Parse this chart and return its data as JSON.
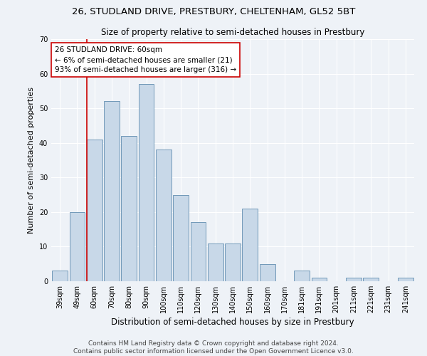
{
  "title": "26, STUDLAND DRIVE, PRESTBURY, CHELTENHAM, GL52 5BT",
  "subtitle": "Size of property relative to semi-detached houses in Prestbury",
  "xlabel": "Distribution of semi-detached houses by size in Prestbury",
  "ylabel": "Number of semi-detached properties",
  "categories": [
    "39sqm",
    "49sqm",
    "60sqm",
    "70sqm",
    "80sqm",
    "90sqm",
    "100sqm",
    "110sqm",
    "120sqm",
    "130sqm",
    "140sqm",
    "150sqm",
    "160sqm",
    "170sqm",
    "181sqm",
    "191sqm",
    "201sqm",
    "211sqm",
    "221sqm",
    "231sqm",
    "241sqm"
  ],
  "values": [
    3,
    20,
    41,
    52,
    42,
    57,
    38,
    25,
    17,
    11,
    11,
    21,
    5,
    0,
    3,
    1,
    0,
    1,
    1,
    0,
    1
  ],
  "bar_color": "#c8d8e8",
  "bar_edge_color": "#7098b8",
  "highlight_index": 2,
  "highlight_line_color": "#cc0000",
  "annotation_text": "26 STUDLAND DRIVE: 60sqm\n← 6% of semi-detached houses are smaller (21)\n93% of semi-detached houses are larger (316) →",
  "annotation_box_color": "#ffffff",
  "annotation_box_edge_color": "#cc0000",
  "ylim": [
    0,
    70
  ],
  "yticks": [
    0,
    10,
    20,
    30,
    40,
    50,
    60,
    70
  ],
  "footer_line1": "Contains HM Land Registry data © Crown copyright and database right 2024.",
  "footer_line2": "Contains public sector information licensed under the Open Government Licence v3.0.",
  "background_color": "#eef2f7",
  "grid_color": "#ffffff",
  "title_fontsize": 9.5,
  "subtitle_fontsize": 8.5,
  "tick_fontsize": 7,
  "ylabel_fontsize": 8,
  "xlabel_fontsize": 8.5,
  "footer_fontsize": 6.5,
  "annotation_fontsize": 7.5
}
